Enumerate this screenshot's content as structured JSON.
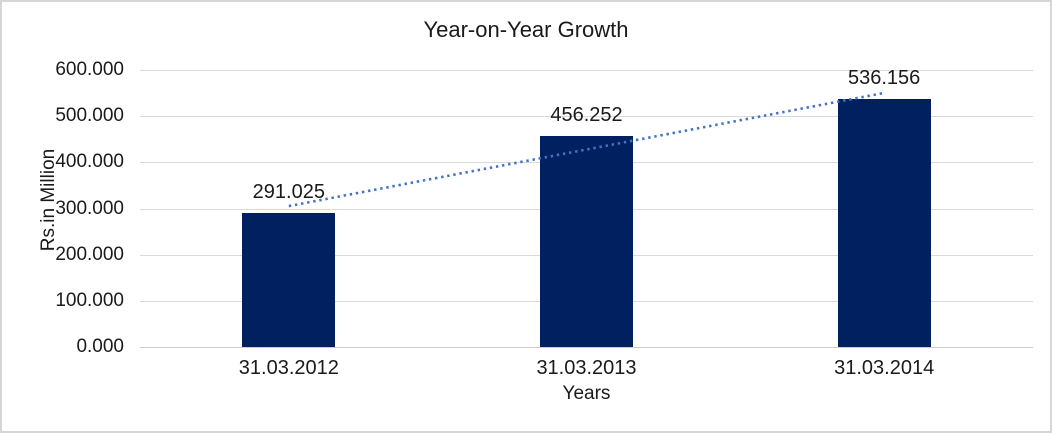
{
  "chart_data": {
    "type": "bar",
    "title": "Year-on-Year Growth",
    "xlabel": "Years",
    "ylabel": "Rs.in Million",
    "categories": [
      "31.03.2012",
      "31.03.2013",
      "31.03.2014"
    ],
    "values": [
      291.025,
      456.252,
      536.156
    ],
    "data_labels": [
      "291.025",
      "456.252",
      "536.156"
    ],
    "ylim": [
      0,
      600
    ],
    "ytick_step": 100,
    "ytick_labels": [
      "0.000",
      "100.000",
      "200.000",
      "300.000",
      "400.000",
      "500.000",
      "600.000"
    ],
    "grid": true,
    "legend": "none",
    "bar_color": "#002060",
    "gridline_color": "#d9d9d9",
    "axis_line_color": "#cccccc",
    "text_color": "#1a1a1a",
    "trendline": {
      "type": "linear",
      "style": "dotted",
      "color": "#4472C4"
    }
  }
}
